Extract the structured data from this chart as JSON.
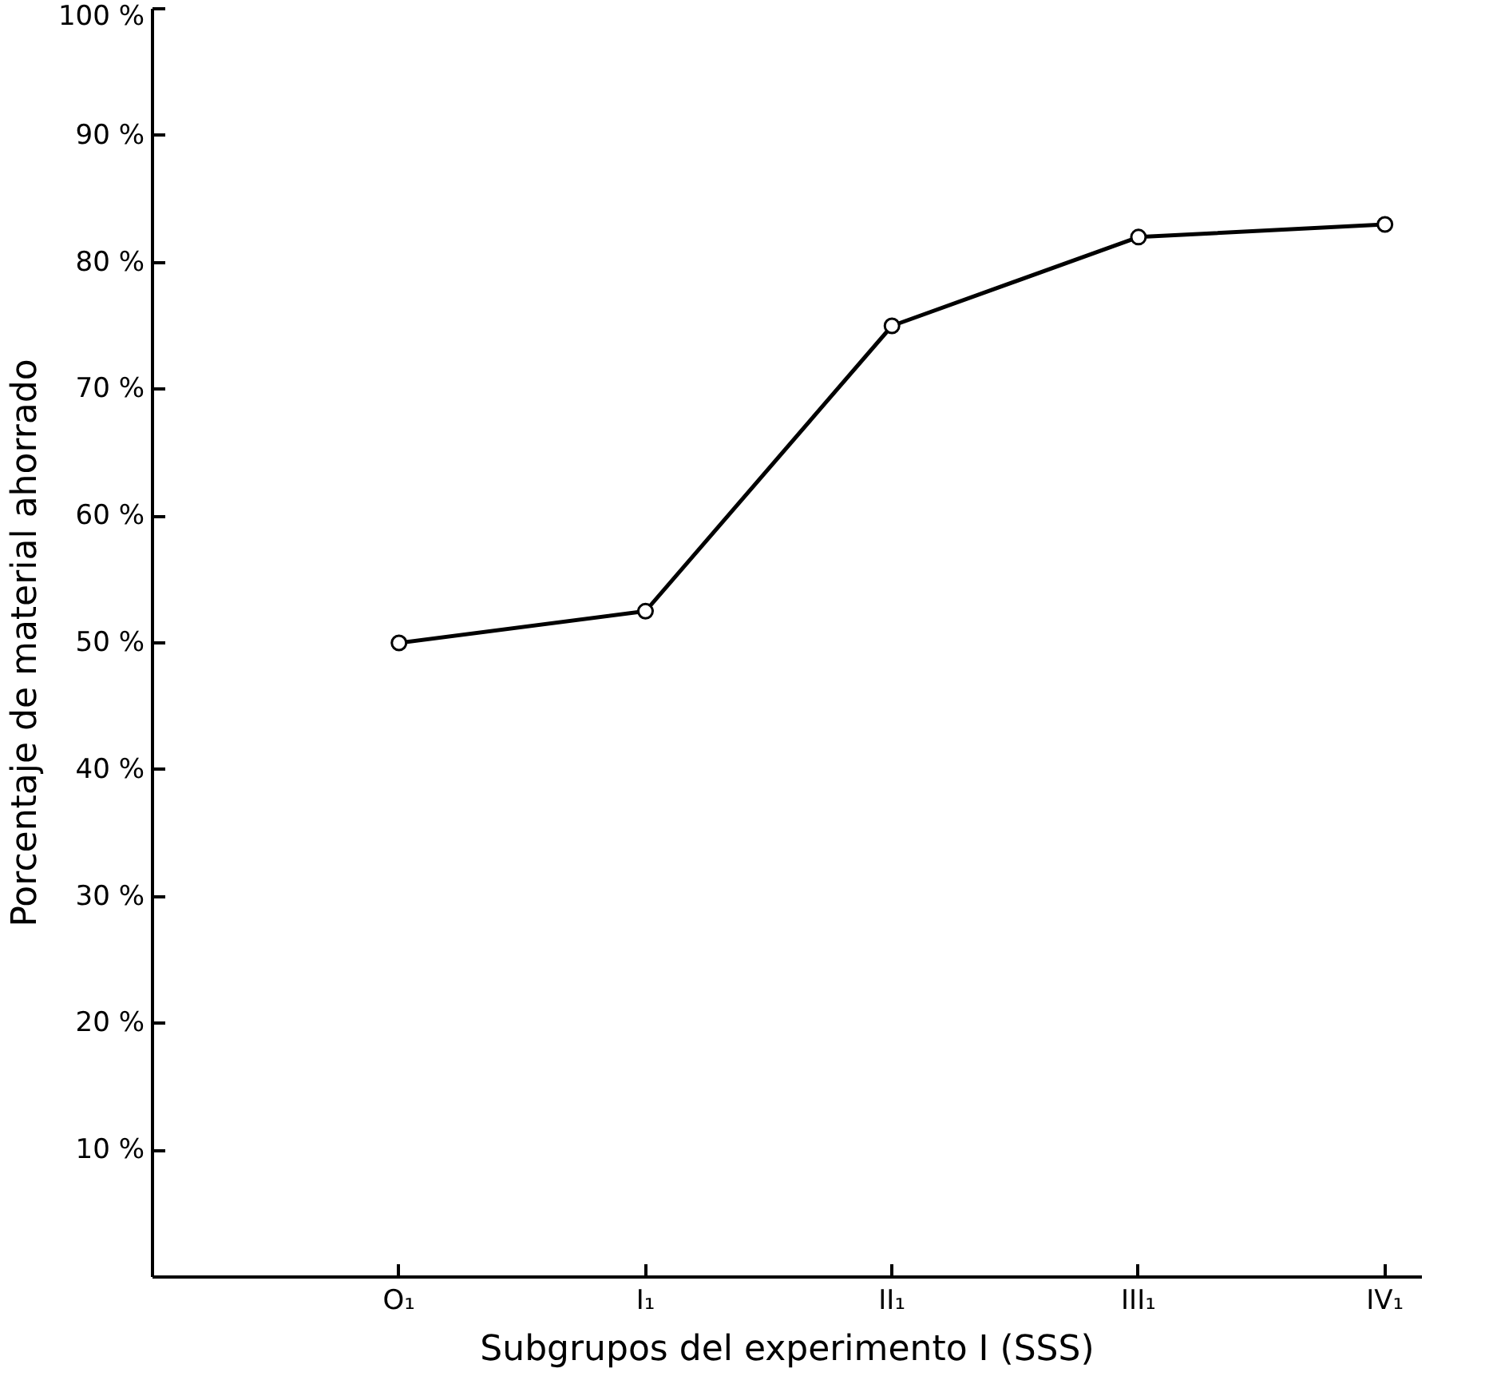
{
  "chart_data": {
    "type": "line",
    "xlabel": "Subgrupos del experimento I (SSS)",
    "ylabel": "Porcentaje de material ahorrado",
    "categories": [
      "O₁",
      "I₁",
      "II₁",
      "III₁",
      "IV₁"
    ],
    "series": [
      {
        "color": "#000000",
        "values": [
          50,
          52.5,
          75,
          82,
          83
        ]
      }
    ],
    "ylim": [
      0,
      100
    ],
    "yticks": [
      {
        "value": 10,
        "label": "10 %"
      },
      {
        "value": 20,
        "label": "20 %"
      },
      {
        "value": 30,
        "label": "30 %"
      },
      {
        "value": 40,
        "label": "40 %"
      },
      {
        "value": 50,
        "label": "50 %"
      },
      {
        "value": 60,
        "label": "60 %"
      },
      {
        "value": 70,
        "label": "70 %"
      },
      {
        "value": 80,
        "label": "80 %"
      },
      {
        "value": 90,
        "label": "90 %"
      },
      {
        "value": 100,
        "label": "100 %"
      }
    ],
    "marker": "circle",
    "line_style": "solid",
    "grid": false
  }
}
